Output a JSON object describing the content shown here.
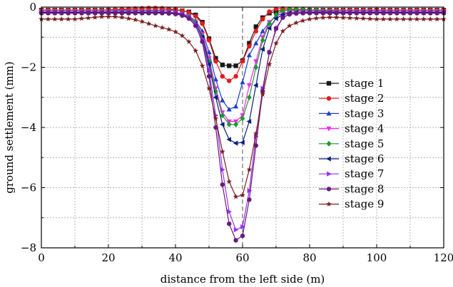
{
  "chart_data": {
    "type": "line",
    "title": "",
    "xlabel": "distance from the left side (m)",
    "ylabel": "ground settlement (mm)",
    "xlim": [
      0,
      120
    ],
    "ylim": [
      -8,
      0
    ],
    "xticks": [
      0,
      20,
      40,
      60,
      80,
      100,
      120
    ],
    "yticks": [
      0,
      -2,
      -4,
      -6,
      -8
    ],
    "x_tick_labels": [
      "0",
      "20",
      "40",
      "60",
      "80",
      "100",
      "120"
    ],
    "y_tick_labels": [
      "0",
      "−2",
      "−4",
      "−6",
      "−8"
    ],
    "grid": true,
    "reference_lines": {
      "y": 0,
      "x": 60
    },
    "legend_position": "right",
    "series": [
      {
        "name": "stage 1",
        "color": "#1a1a1a",
        "marker": "square",
        "x_start": 0,
        "x_step": 2,
        "values": [
          -0.1,
          -0.1,
          -0.1,
          -0.1,
          -0.1,
          -0.1,
          -0.1,
          -0.1,
          -0.1,
          -0.1,
          -0.1,
          -0.1,
          -0.1,
          -0.1,
          -0.1,
          -0.1,
          -0.1,
          -0.1,
          -0.1,
          -0.1,
          -0.1,
          -0.12,
          -0.16,
          -0.26,
          -0.5,
          -1.05,
          -1.7,
          -1.92,
          -1.95,
          -1.95,
          -1.78,
          -1.2,
          -0.65,
          -0.35,
          -0.2,
          -0.14,
          -0.11,
          -0.1,
          -0.1,
          -0.1,
          -0.1,
          -0.1,
          -0.1,
          -0.1,
          -0.1,
          -0.1,
          -0.1,
          -0.1,
          -0.1,
          -0.1,
          -0.1,
          -0.1,
          -0.1,
          -0.1,
          -0.1,
          -0.1,
          -0.1,
          -0.1,
          -0.1,
          -0.1,
          -0.1
        ]
      },
      {
        "name": "stage 2",
        "color": "#e41a1c",
        "marker": "circle",
        "x_start": 0,
        "x_step": 2,
        "values": [
          -0.1,
          -0.1,
          -0.1,
          -0.1,
          -0.1,
          -0.1,
          -0.1,
          -0.1,
          -0.1,
          -0.1,
          -0.09,
          -0.08,
          -0.07,
          -0.06,
          -0.05,
          -0.04,
          -0.03,
          -0.03,
          -0.04,
          -0.06,
          -0.08,
          -0.12,
          -0.18,
          -0.3,
          -0.55,
          -1.1,
          -1.8,
          -2.3,
          -2.45,
          -2.3,
          -1.8,
          -1.3,
          -0.8,
          -0.4,
          -0.15,
          -0.06,
          -0.05,
          -0.06,
          -0.07,
          -0.08,
          -0.09,
          -0.1,
          -0.1,
          -0.1,
          -0.1,
          -0.1,
          -0.1,
          -0.1,
          -0.1,
          -0.1,
          -0.1,
          -0.1,
          -0.1,
          -0.1,
          -0.1,
          -0.1,
          -0.1,
          -0.1,
          -0.1,
          -0.1,
          -0.1
        ]
      },
      {
        "name": "stage 3",
        "color": "#1f3fc8",
        "marker": "triangle-up",
        "x_start": 0,
        "x_step": 2,
        "values": [
          -0.15,
          -0.15,
          -0.15,
          -0.15,
          -0.15,
          -0.15,
          -0.15,
          -0.15,
          -0.15,
          -0.15,
          -0.15,
          -0.15,
          -0.15,
          -0.15,
          -0.15,
          -0.15,
          -0.15,
          -0.15,
          -0.15,
          -0.16,
          -0.18,
          -0.22,
          -0.3,
          -0.45,
          -0.8,
          -1.5,
          -2.4,
          -3.1,
          -3.4,
          -3.3,
          -2.5,
          -1.6,
          -1.2,
          -0.8,
          -0.5,
          -0.3,
          -0.2,
          -0.16,
          -0.15,
          -0.15,
          -0.15,
          -0.15,
          -0.15,
          -0.15,
          -0.15,
          -0.15,
          -0.15,
          -0.15,
          -0.15,
          -0.15,
          -0.15,
          -0.15,
          -0.15,
          -0.15,
          -0.15,
          -0.15,
          -0.15,
          -0.15,
          -0.15,
          -0.15,
          -0.15
        ]
      },
      {
        "name": "stage 4",
        "color": "#ff22ee",
        "marker": "triangle-down",
        "x_start": 0,
        "x_step": 2,
        "values": [
          -0.15,
          -0.15,
          -0.15,
          -0.15,
          -0.15,
          -0.15,
          -0.15,
          -0.15,
          -0.15,
          -0.15,
          -0.15,
          -0.15,
          -0.15,
          -0.15,
          -0.15,
          -0.15,
          -0.15,
          -0.15,
          -0.15,
          -0.16,
          -0.18,
          -0.22,
          -0.3,
          -0.48,
          -0.9,
          -1.7,
          -2.7,
          -3.5,
          -3.8,
          -3.8,
          -3.6,
          -2.6,
          -1.8,
          -1.0,
          -0.5,
          -0.28,
          -0.2,
          -0.16,
          -0.15,
          -0.15,
          -0.15,
          -0.15,
          -0.15,
          -0.15,
          -0.15,
          -0.15,
          -0.15,
          -0.15,
          -0.15,
          -0.15,
          -0.15,
          -0.15,
          -0.15,
          -0.15,
          -0.15,
          -0.15,
          -0.15,
          -0.15,
          -0.15,
          -0.15,
          -0.15
        ]
      },
      {
        "name": "stage 5",
        "color": "#1a9a2a",
        "marker": "diamond",
        "x_start": 0,
        "x_step": 2,
        "values": [
          -0.15,
          -0.15,
          -0.15,
          -0.15,
          -0.15,
          -0.15,
          -0.15,
          -0.15,
          -0.15,
          -0.15,
          -0.15,
          -0.15,
          -0.15,
          -0.15,
          -0.15,
          -0.15,
          -0.15,
          -0.15,
          -0.15,
          -0.16,
          -0.18,
          -0.22,
          -0.3,
          -0.5,
          -0.95,
          -1.8,
          -2.8,
          -3.6,
          -3.9,
          -3.9,
          -3.7,
          -3.0,
          -2.0,
          -1.1,
          -0.55,
          -0.25,
          -0.12,
          -0.08,
          -0.08,
          -0.09,
          -0.1,
          -0.11,
          -0.12,
          -0.13,
          -0.14,
          -0.15,
          -0.15,
          -0.15,
          -0.15,
          -0.15,
          -0.15,
          -0.15,
          -0.15,
          -0.15,
          -0.15,
          -0.15,
          -0.15,
          -0.15,
          -0.15,
          -0.15,
          -0.15
        ]
      },
      {
        "name": "stage 6",
        "color": "#0b1f7a",
        "marker": "triangle-left",
        "x_start": 0,
        "x_step": 2,
        "values": [
          -0.18,
          -0.18,
          -0.18,
          -0.18,
          -0.18,
          -0.18,
          -0.18,
          -0.18,
          -0.18,
          -0.18,
          -0.18,
          -0.18,
          -0.18,
          -0.18,
          -0.18,
          -0.18,
          -0.18,
          -0.18,
          -0.18,
          -0.19,
          -0.21,
          -0.25,
          -0.35,
          -0.55,
          -1.0,
          -1.9,
          -3.0,
          -3.9,
          -4.4,
          -4.52,
          -4.5,
          -3.8,
          -2.6,
          -1.4,
          -0.7,
          -0.38,
          -0.25,
          -0.2,
          -0.18,
          -0.18,
          -0.18,
          -0.18,
          -0.18,
          -0.18,
          -0.18,
          -0.18,
          -0.18,
          -0.18,
          -0.18,
          -0.18,
          -0.18,
          -0.18,
          -0.18,
          -0.18,
          -0.18,
          -0.18,
          -0.18,
          -0.18,
          -0.18,
          -0.18,
          -0.18
        ]
      },
      {
        "name": "stage 7",
        "color": "#9a2ef0",
        "marker": "triangle-right",
        "x_start": 0,
        "x_step": 2,
        "values": [
          -0.15,
          -0.15,
          -0.15,
          -0.15,
          -0.15,
          -0.15,
          -0.15,
          -0.15,
          -0.15,
          -0.15,
          -0.15,
          -0.15,
          -0.15,
          -0.15,
          -0.15,
          -0.15,
          -0.15,
          -0.15,
          -0.15,
          -0.16,
          -0.18,
          -0.22,
          -0.32,
          -0.55,
          -1.05,
          -2.1,
          -3.6,
          -5.4,
          -6.8,
          -7.4,
          -7.3,
          -6.1,
          -4.3,
          -2.7,
          -1.5,
          -0.75,
          -0.35,
          -0.22,
          -0.18,
          -0.16,
          -0.15,
          -0.15,
          -0.15,
          -0.15,
          -0.15,
          -0.15,
          -0.15,
          -0.15,
          -0.15,
          -0.15,
          -0.15,
          -0.15,
          -0.15,
          -0.15,
          -0.15,
          -0.15,
          -0.15,
          -0.15,
          -0.15,
          -0.15,
          -0.15
        ]
      },
      {
        "name": "stage 8",
        "color": "#6a1a7a",
        "marker": "circle",
        "x_start": 0,
        "x_step": 2,
        "values": [
          -0.2,
          -0.2,
          -0.2,
          -0.2,
          -0.2,
          -0.2,
          -0.2,
          -0.2,
          -0.2,
          -0.2,
          -0.2,
          -0.2,
          -0.2,
          -0.2,
          -0.2,
          -0.2,
          -0.2,
          -0.2,
          -0.2,
          -0.21,
          -0.23,
          -0.28,
          -0.38,
          -0.62,
          -1.15,
          -2.3,
          -4.0,
          -5.9,
          -7.2,
          -7.75,
          -7.6,
          -6.4,
          -4.6,
          -2.8,
          -1.5,
          -0.7,
          -0.35,
          -0.24,
          -0.21,
          -0.2,
          -0.2,
          -0.2,
          -0.2,
          -0.2,
          -0.2,
          -0.2,
          -0.2,
          -0.2,
          -0.2,
          -0.2,
          -0.2,
          -0.2,
          -0.2,
          -0.2,
          -0.2,
          -0.2,
          -0.2,
          -0.2,
          -0.2,
          -0.2,
          -0.2
        ]
      },
      {
        "name": "stage 9",
        "color": "#7a1f1f",
        "marker": "star",
        "x_start": 0,
        "x_step": 2,
        "values": [
          -0.4,
          -0.4,
          -0.4,
          -0.4,
          -0.4,
          -0.4,
          -0.38,
          -0.36,
          -0.34,
          -0.32,
          -0.32,
          -0.32,
          -0.34,
          -0.38,
          -0.42,
          -0.48,
          -0.55,
          -0.62,
          -0.68,
          -0.74,
          -0.82,
          -0.95,
          -1.15,
          -1.45,
          -1.95,
          -2.7,
          -3.7,
          -4.8,
          -5.8,
          -6.3,
          -6.25,
          -5.4,
          -4.2,
          -2.9,
          -1.9,
          -1.2,
          -0.8,
          -0.62,
          -0.52,
          -0.45,
          -0.4,
          -0.37,
          -0.35,
          -0.34,
          -0.34,
          -0.35,
          -0.36,
          -0.37,
          -0.38,
          -0.39,
          -0.4,
          -0.4,
          -0.4,
          -0.4,
          -0.4,
          -0.4,
          -0.4,
          -0.4,
          -0.4,
          -0.4,
          -0.4
        ]
      }
    ]
  }
}
